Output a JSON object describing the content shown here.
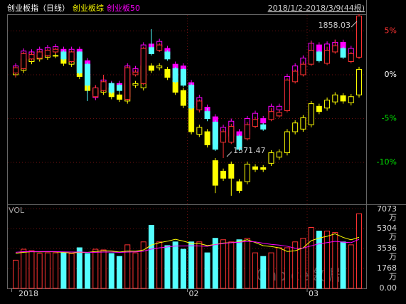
{
  "chart_data": [
    {
      "type": "candlestick",
      "date_range": "2018/1/2-2018/3/9(44根)",
      "categories": [
        "2018",
        null,
        null,
        null,
        null,
        null,
        null,
        null,
        null,
        null,
        null,
        null,
        null,
        null,
        null,
        null,
        null,
        null,
        null,
        null,
        null,
        null,
        "02",
        null,
        null,
        null,
        null,
        null,
        null,
        null,
        null,
        null,
        null,
        null,
        null,
        null,
        null,
        "03",
        null,
        null,
        null,
        null,
        null,
        null
      ],
      "ylim": [
        -14.7,
        6.9
      ],
      "yticks": [
        {
          "value": 5,
          "label": "5%"
        },
        {
          "value": 0,
          "label": "0%"
        },
        {
          "value": -5,
          "label": "-5%"
        },
        {
          "value": -10,
          "label": "-10%"
        }
      ],
      "grid": true,
      "max_label": "1858.03",
      "min_label": "1571.47",
      "series": [
        {
          "name": "创业板指（日线）",
          "color": "#ffffff",
          "up_color": "#ff3232",
          "down_color": "#54ffff",
          "hollow_up": true,
          "open": [
            0.2,
            0.7,
            1.8,
            1.9,
            2.2,
            2.6,
            2.6,
            1.5,
            2.6,
            1.2,
            -2.5,
            -1.8,
            -1.0,
            -1.2,
            -2.8,
            0.0,
            -1.0,
            3.1,
            2.8,
            2.6,
            0.7,
            0.6,
            -1.2,
            -4.0,
            -4.2,
            -5.4,
            -7.7,
            -7.7,
            -7.0,
            -7.3,
            -5.9,
            -5.7,
            -5.1,
            -4.7,
            -4.1,
            -0.8,
            0.0,
            1.2,
            2.6,
            1.3,
            2.6,
            3.0,
            1.5,
            2.0
          ],
          "high": [
            1.0,
            2.6,
            2.6,
            2.8,
            3.0,
            3.1,
            2.8,
            2.8,
            2.7,
            1.4,
            -1.2,
            0.0,
            -0.8,
            -1.0,
            1.0,
            0.6,
            3.2,
            5.2,
            3.6,
            2.8,
            0.9,
            0.8,
            -1.0,
            -2.8,
            -3.8,
            -5.2,
            -6.2,
            -5.6,
            -6.8,
            -5.4,
            -4.8,
            -5.5,
            -3.8,
            -4.0,
            -0.4,
            0.6,
            1.5,
            3.8,
            2.8,
            3.2,
            4.0,
            3.2,
            2.6,
            6.9
          ],
          "low": [
            -0.3,
            0.5,
            1.6,
            1.7,
            2.0,
            2.4,
            1.6,
            1.3,
            0.0,
            -3.0,
            -2.7,
            -2.0,
            -2.2,
            -2.0,
            -3.0,
            -0.2,
            -1.2,
            2.2,
            2.6,
            1.6,
            -1.0,
            -1.4,
            -4.0,
            -4.3,
            -5.3,
            -8.7,
            -9.5,
            -7.9,
            -8.7,
            -7.5,
            -6.1,
            -6.4,
            -5.3,
            -4.9,
            -4.3,
            -1.0,
            -0.2,
            1.0,
            1.4,
            1.1,
            2.4,
            1.8,
            1.3,
            1.8
          ],
          "close": [
            0.8,
            2.4,
            2.3,
            2.6,
            2.8,
            2.9,
            1.8,
            2.6,
            0.2,
            -1.2,
            -1.5,
            -0.8,
            -2.0,
            -1.8,
            0.8,
            0.3,
            3.0,
            2.4,
            3.4,
            1.8,
            -0.8,
            -1.2,
            -3.8,
            -3.0,
            -5.0,
            -8.5,
            -6.5,
            -5.9,
            -8.5,
            -5.7,
            -5.1,
            -6.2,
            -4.2,
            -4.3,
            -0.6,
            0.4,
            1.2,
            2.8,
            1.6,
            2.8,
            3.3,
            2.0,
            2.4,
            6.7
          ]
        },
        {
          "name": "创业板综",
          "color": "#ffff00",
          "up_color": "#ffff00",
          "down_color": "#ffff00",
          "hollow_up": true,
          "open": [
            0.0,
            0.5,
            1.5,
            1.8,
            2.0,
            2.2,
            2.0,
            1.2,
            1.8,
            -0.2,
            -2.2,
            -2.0,
            -1.5,
            -2.3,
            -3.0,
            -1.2,
            -1.5,
            1.0,
            0.8,
            0.6,
            -0.6,
            -1.8,
            -3.6,
            -6.8,
            -6.5,
            -9.8,
            -11.0,
            -10.2,
            -12.2,
            -12.2,
            -10.5,
            -10.6,
            -10.1,
            -9.4,
            -8.9,
            -6.5,
            -6.2,
            -5.7,
            -3.6,
            -3.8,
            -3.1,
            -2.4,
            -3.2,
            -2.3
          ],
          "high": [
            0.9,
            2.1,
            2.3,
            2.5,
            2.6,
            2.5,
            2.3,
            2.1,
            2.1,
            0.1,
            -1.5,
            -1.2,
            -1.2,
            -2.0,
            -0.7,
            -0.7,
            1.3,
            1.3,
            1.3,
            0.9,
            -0.3,
            -1.5,
            -3.3,
            -5.7,
            -6.2,
            -9.5,
            -10.7,
            -9.9,
            -11.9,
            -9.9,
            -10.2,
            -10.3,
            -8.6,
            -8.5,
            -6.2,
            -5.2,
            -4.6,
            -3.0,
            -3.3,
            -2.6,
            -2.0,
            -2.1,
            -2.2,
            0.9
          ],
          "low": [
            -0.3,
            0.2,
            1.2,
            1.5,
            1.7,
            1.9,
            1.0,
            0.9,
            -0.5,
            -2.1,
            -2.5,
            -2.3,
            -2.8,
            -3.1,
            -3.3,
            -1.5,
            -1.8,
            0.2,
            0.5,
            -0.6,
            -2.3,
            -3.8,
            -6.8,
            -7.1,
            -8.3,
            -13.5,
            -12.1,
            -13.8,
            -13.5,
            -12.5,
            -11.1,
            -11.1,
            -10.4,
            -9.7,
            -9.2,
            -6.8,
            -6.5,
            -6.0,
            -4.5,
            -4.1,
            -3.4,
            -3.3,
            -3.5,
            -2.6
          ],
          "close": [
            0.6,
            1.8,
            2.0,
            2.2,
            2.3,
            2.2,
            1.3,
            1.8,
            -0.2,
            -1.8,
            -1.8,
            -1.5,
            -2.5,
            -2.8,
            -1.0,
            -1.0,
            1.0,
            0.5,
            1.0,
            -0.3,
            -2.0,
            -3.5,
            -6.5,
            -6.0,
            -8.0,
            -12.6,
            -11.8,
            -11.8,
            -13.2,
            -10.2,
            -10.8,
            -10.8,
            -8.9,
            -8.8,
            -6.5,
            -5.5,
            -4.9,
            -3.3,
            -4.2,
            -2.9,
            -2.3,
            -3.0,
            -2.5,
            0.6
          ]
        },
        {
          "name": "创业板50",
          "color": "#ff00ff",
          "up_color": "#ff00ff",
          "down_color": "#ff00ff",
          "hollow_up": true,
          "open": [
            0.3,
            0.9,
            2.0,
            2.1,
            2.5,
            2.8,
            2.9,
            1.8,
            2.9,
            1.6,
            -2.6,
            -1.6,
            -1.0,
            -1.0,
            -2.5,
            0.3,
            -0.5,
            3.5,
            3.2,
            3.0,
            1.2,
            1.0,
            -0.9,
            -3.6,
            -3.7,
            -4.8,
            -7.2,
            -7.0,
            -6.5,
            -6.8,
            -5.2,
            -5.0,
            -4.4,
            -4.0,
            -3.4,
            -0.1,
            0.8,
            2.0,
            3.4,
            2.2,
            2.9,
            3.7,
            2.2,
            2.4
          ],
          "high": [
            1.3,
            3.0,
            2.9,
            3.2,
            3.4,
            3.5,
            3.2,
            3.2,
            3.2,
            1.9,
            -1.2,
            -0.3,
            -0.7,
            -0.7,
            1.3,
            1.0,
            3.7,
            3.8,
            4.1,
            3.3,
            1.5,
            1.3,
            -0.6,
            -2.3,
            -3.4,
            -4.5,
            -5.7,
            -5.0,
            -6.2,
            -4.7,
            -4.1,
            -4.7,
            -3.3,
            -3.3,
            0.1,
            1.3,
            2.2,
            3.9,
            3.7,
            3.8,
            4.0,
            4.0,
            3.3,
            6.7
          ],
          "low": [
            0.0,
            0.6,
            1.7,
            1.8,
            2.2,
            2.5,
            1.7,
            1.5,
            0.1,
            -1.3,
            -2.9,
            -1.9,
            -2.3,
            -2.0,
            -2.8,
            0.0,
            -0.8,
            2.5,
            2.9,
            2.0,
            -0.7,
            -1.1,
            -3.7,
            -3.9,
            -4.7,
            -8.2,
            -7.5,
            -7.3,
            -8.1,
            -7.1,
            -5.5,
            -5.8,
            -4.7,
            -4.3,
            -3.7,
            -0.4,
            0.5,
            1.7,
            2.0,
            1.9,
            2.6,
            2.5,
            1.9,
            2.1
          ],
          "close": [
            1.0,
            2.7,
            2.6,
            2.9,
            3.1,
            3.2,
            2.0,
            2.9,
            0.4,
            -1.0,
            -1.5,
            -0.6,
            -2.0,
            -1.7,
            1.0,
            0.7,
            3.4,
            2.8,
            3.8,
            2.3,
            -0.4,
            -0.8,
            -3.4,
            -2.6,
            -4.4,
            -7.9,
            -6.0,
            -5.3,
            -7.8,
            -5.0,
            -4.4,
            -5.5,
            -3.6,
            -3.6,
            -0.2,
            1.0,
            1.9,
            3.6,
            2.3,
            3.5,
            3.7,
            2.8,
            3.0,
            6.4
          ]
        }
      ]
    },
    {
      "type": "bar",
      "title": "VOL",
      "watermark": "Choice数据",
      "ylim": [
        0,
        7073
      ],
      "yticks": [
        {
          "value": 7073,
          "label": "7073万"
        },
        {
          "value": 5304,
          "label": "5304万"
        },
        {
          "value": 3536,
          "label": "3536万"
        },
        {
          "value": 1768,
          "label": "1768万"
        },
        {
          "value": 0,
          "label": "0.00"
        }
      ],
      "grid": true,
      "values": [
        2500,
        3470,
        3340,
        3090,
        3150,
        3150,
        3150,
        3090,
        3600,
        3090,
        3470,
        3410,
        3090,
        2830,
        3860,
        3150,
        4120,
        5590,
        4120,
        3790,
        4120,
        3470,
        4120,
        4120,
        3150,
        4440,
        4310,
        4120,
        4310,
        4440,
        3150,
        2830,
        3150,
        3600,
        3600,
        4120,
        4440,
        5400,
        5080,
        5080,
        4950,
        4120,
        3860,
        6620
      ],
      "lines": [
        {
          "color": "#ffff00",
          "values": [
            3100,
            3200,
            3250,
            3230,
            3250,
            3240,
            3190,
            3130,
            3200,
            3190,
            3270,
            3330,
            3310,
            3220,
            3310,
            3290,
            3400,
            3840,
            4050,
            4180,
            4350,
            4190,
            3990,
            3970,
            3800,
            3890,
            4020,
            4060,
            4130,
            4320,
            4060,
            3780,
            3710,
            3590,
            3270,
            3330,
            3590,
            4230,
            4460,
            4620,
            4840,
            4520,
            4300,
            4530
          ]
        },
        {
          "color": "#ff00ff",
          "values": [
            3200,
            3250,
            3270,
            3260,
            3270,
            3260,
            3240,
            3220,
            3220,
            3200,
            3200,
            3220,
            3220,
            3190,
            3220,
            3240,
            3290,
            3480,
            3590,
            3670,
            3750,
            3760,
            3770,
            3760,
            3730,
            3880,
            3990,
            4050,
            4090,
            4170,
            4120,
            4000,
            3900,
            3840,
            3730,
            3560,
            3570,
            3770,
            3950,
            4060,
            4170,
            4100,
            4050,
            4350
          ]
        }
      ]
    }
  ]
}
